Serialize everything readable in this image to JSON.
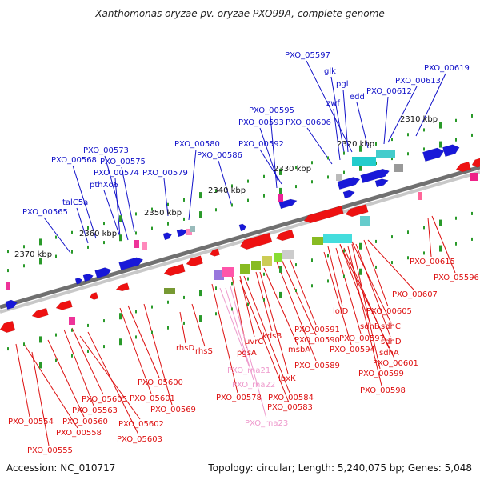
{
  "title": "Xanthomonas oryzae pv. oryzae PXO99A, complete genome",
  "footer": {
    "accession": "Accession: NC_010717",
    "summary": "Topology: circular; Length: 5,240,075 bp; Genes: 5,048"
  },
  "colors": {
    "forward_label": "#1010c8",
    "reverse_label": "#dd1010",
    "rna_label": "#ee99cc",
    "backbone": "#707070",
    "tick": "#2a9a2a",
    "forward_gene": "#1818d8",
    "reverse_gene": "#ee1111"
  },
  "scale": {
    "unit": "kbp",
    "ticks": [
      "2310 kbp",
      "2320 kbp",
      "2330 kbp",
      "2340 kbp",
      "2350 kbp",
      "2360 kbp",
      "2370 kbp"
    ]
  },
  "forward_genes": [
    "PXO_05597",
    "glk",
    "pgl",
    "PXO_00619",
    "PXO_00613",
    "edd",
    "PXO_00612",
    "zwf",
    "PXO_00595",
    "PXO_00593",
    "PXO_00606",
    "PXO_00592",
    "PXO_00580",
    "PXO_00586",
    "PXO_00573",
    "PXO_00568",
    "PXO_00575",
    "PXO_00574",
    "PXO_00579",
    "pthXo6",
    "talC5a",
    "PXO_00565"
  ],
  "reverse_genes": [
    "PXO_00615",
    "PXO_05596",
    "PXO_00607",
    "lolD",
    "PXO_00605",
    "sdhB",
    "sdhC",
    "PXO_00597",
    "sdhD",
    "PXO_00594",
    "sdhA",
    "PXO_00601",
    "PXO_00599",
    "PXO_00598",
    "PXO_00591",
    "PXO_00590",
    "kdsB",
    "msbA",
    "uvrC",
    "PXO_00589",
    "lpxK",
    "pgsA",
    "PXO_00584",
    "PXO_00583",
    "PXO_00578",
    "rhsD",
    "rhsS",
    "PXO_05600",
    "PXO_05601",
    "PXO_05605",
    "PXO_05563",
    "PXO_00569",
    "PXO_00554",
    "PXO_00560",
    "PXO_05602",
    "PXO_00558",
    "PXO_05603",
    "PXO_00555"
  ],
  "rna_genes": [
    "PXO_rna21",
    "PXO_rna22",
    "PXO_rna23"
  ]
}
